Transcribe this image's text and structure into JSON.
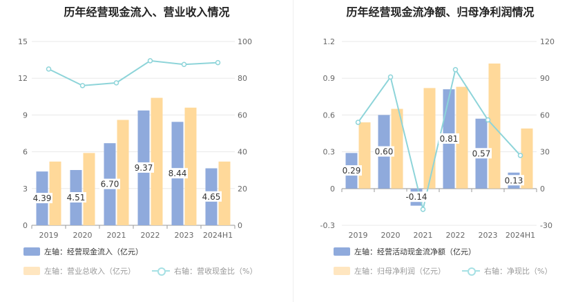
{
  "chart_data": [
    {
      "type": "bar+line",
      "title": "历年经营现金流入、营业收入情况",
      "categories": [
        "2019",
        "2020",
        "2021",
        "2022",
        "2023",
        "2024H1"
      ],
      "left_axis": {
        "ylim": [
          0,
          15
        ],
        "ticks": [
          "0",
          "3",
          "6",
          "9",
          "12",
          "15"
        ]
      },
      "right_axis": {
        "ylim": [
          0,
          100
        ],
        "ticks": [
          "0",
          "20",
          "40",
          "60",
          "80",
          "100"
        ]
      },
      "series": [
        {
          "name": "左轴：经营现金流入（亿元）",
          "type": "bar",
          "axis": "left",
          "color": "#8faadc",
          "values": [
            4.39,
            4.51,
            6.7,
            9.37,
            8.44,
            4.65
          ],
          "labels": [
            "4.39",
            "4.51",
            "6.70",
            "9.37",
            "8.44",
            "4.65"
          ]
        },
        {
          "name": "左轴：营业总收入（亿元）",
          "type": "bar",
          "axis": "left",
          "color": "#ffd99a",
          "values": [
            5.2,
            5.9,
            8.6,
            10.4,
            9.6,
            5.2
          ]
        },
        {
          "name": "右轴：营收现金比（%）",
          "type": "line",
          "axis": "right",
          "color": "#8dd4d9",
          "values": [
            85,
            76,
            77.5,
            89.5,
            87.5,
            88.5
          ]
        }
      ]
    },
    {
      "type": "bar+line",
      "title": "历年经营现金流净额、归母净利润情况",
      "categories": [
        "2019",
        "2020",
        "2021",
        "2022",
        "2023",
        "2024H1"
      ],
      "left_axis": {
        "ylim": [
          -0.3,
          1.2
        ],
        "ticks": [
          "-0.3",
          "0",
          "0.3",
          "0.6",
          "0.9",
          "1.2"
        ]
      },
      "right_axis": {
        "ylim": [
          -30,
          120
        ],
        "ticks": [
          "-30",
          "0",
          "30",
          "60",
          "90",
          "120"
        ]
      },
      "series": [
        {
          "name": "左轴：经营活动现金流净额（亿元）",
          "type": "bar",
          "axis": "left",
          "color": "#8faadc",
          "values": [
            0.29,
            0.6,
            -0.14,
            0.81,
            0.57,
            0.13
          ],
          "labels": [
            "0.29",
            "0.60",
            "-0.14",
            "0.81",
            "0.57",
            "0.13"
          ]
        },
        {
          "name": "左轴：归母净利润（亿元）",
          "type": "bar",
          "axis": "left",
          "color": "#ffd99a",
          "values": [
            0.54,
            0.65,
            0.82,
            0.83,
            1.02,
            0.49
          ]
        },
        {
          "name": "右轴：净现比（%）",
          "type": "line",
          "axis": "right",
          "color": "#8dd4d9",
          "values": [
            54,
            91,
            -17,
            97,
            56,
            27
          ]
        }
      ]
    }
  ]
}
